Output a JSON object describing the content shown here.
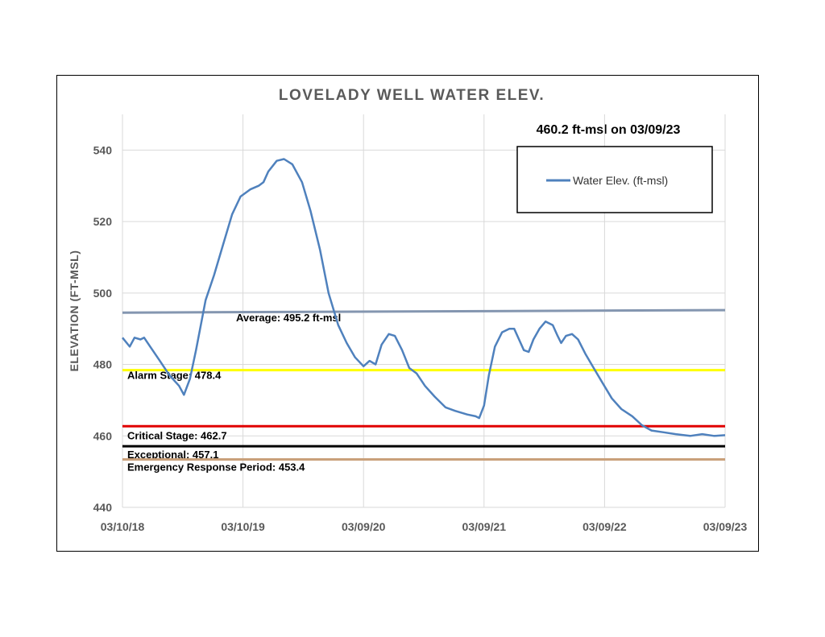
{
  "chart_data": {
    "type": "line",
    "title": "LOVELADY WELL WATER ELEV.",
    "ylabel": "ELEVATION (FT-MSL)",
    "xlabel": "",
    "ylim": [
      440,
      550
    ],
    "yticks": [
      440,
      460,
      480,
      500,
      520,
      540
    ],
    "x_tick_labels": [
      "03/10/18",
      "03/10/19",
      "03/09/20",
      "03/09/21",
      "03/09/22",
      "03/09/23"
    ],
    "xlim": [
      2018.19,
      2023.19
    ],
    "grid": true,
    "annotation": "460.2 ft-msl on 03/09/23",
    "legend": {
      "position": "top-right",
      "entries": [
        "Water Elev. (ft-msl)"
      ]
    },
    "series": [
      {
        "name": "Water Elev. (ft-msl)",
        "color": "#4f81bd",
        "points": [
          [
            2018.19,
            487.5
          ],
          [
            2018.25,
            485.0
          ],
          [
            2018.29,
            487.5
          ],
          [
            2018.34,
            487.0
          ],
          [
            2018.37,
            487.5
          ],
          [
            2018.42,
            485.0
          ],
          [
            2018.5,
            481.0
          ],
          [
            2018.58,
            477.0
          ],
          [
            2018.66,
            474.0
          ],
          [
            2018.7,
            471.5
          ],
          [
            2018.75,
            476.0
          ],
          [
            2018.8,
            484.0
          ],
          [
            2018.88,
            498.0
          ],
          [
            2018.95,
            505.0
          ],
          [
            2019.02,
            513.0
          ],
          [
            2019.1,
            522.0
          ],
          [
            2019.17,
            527.0
          ],
          [
            2019.25,
            529.0
          ],
          [
            2019.32,
            530.0
          ],
          [
            2019.36,
            531.0
          ],
          [
            2019.4,
            534.0
          ],
          [
            2019.47,
            537.0
          ],
          [
            2019.53,
            537.5
          ],
          [
            2019.6,
            536.0
          ],
          [
            2019.68,
            531.0
          ],
          [
            2019.75,
            523.0
          ],
          [
            2019.83,
            512.0
          ],
          [
            2019.9,
            500.0
          ],
          [
            2019.98,
            491.0
          ],
          [
            2020.05,
            486.0
          ],
          [
            2020.12,
            482.0
          ],
          [
            2020.19,
            479.5
          ],
          [
            2020.24,
            481.0
          ],
          [
            2020.29,
            480.0
          ],
          [
            2020.34,
            485.5
          ],
          [
            2020.4,
            488.5
          ],
          [
            2020.45,
            488.0
          ],
          [
            2020.51,
            484.0
          ],
          [
            2020.57,
            479.0
          ],
          [
            2020.63,
            477.5
          ],
          [
            2020.7,
            474.0
          ],
          [
            2020.78,
            471.0
          ],
          [
            2020.87,
            468.0
          ],
          [
            2020.95,
            467.0
          ],
          [
            2021.05,
            466.0
          ],
          [
            2021.12,
            465.5
          ],
          [
            2021.15,
            465.0
          ],
          [
            2021.19,
            468.5
          ],
          [
            2021.23,
            477.0
          ],
          [
            2021.28,
            485.0
          ],
          [
            2021.34,
            489.0
          ],
          [
            2021.4,
            490.0
          ],
          [
            2021.44,
            490.0
          ],
          [
            2021.48,
            487.0
          ],
          [
            2021.52,
            484.0
          ],
          [
            2021.56,
            483.5
          ],
          [
            2021.6,
            487.0
          ],
          [
            2021.65,
            490.0
          ],
          [
            2021.7,
            492.0
          ],
          [
            2021.76,
            491.0
          ],
          [
            2021.8,
            488.0
          ],
          [
            2021.83,
            486.0
          ],
          [
            2021.87,
            488.0
          ],
          [
            2021.92,
            488.5
          ],
          [
            2021.97,
            487.0
          ],
          [
            2022.03,
            483.0
          ],
          [
            2022.1,
            479.0
          ],
          [
            2022.17,
            475.0
          ],
          [
            2022.25,
            470.5
          ],
          [
            2022.33,
            467.5
          ],
          [
            2022.42,
            465.5
          ],
          [
            2022.5,
            463.0
          ],
          [
            2022.58,
            461.5
          ],
          [
            2022.68,
            461.0
          ],
          [
            2022.78,
            460.5
          ],
          [
            2022.9,
            460.0
          ],
          [
            2023.0,
            460.5
          ],
          [
            2023.1,
            460.0
          ],
          [
            2023.19,
            460.2
          ]
        ]
      }
    ],
    "reference_lines": [
      {
        "name": "Average",
        "value": 495.2,
        "label": "Average: 495.2 ft-msl",
        "color": "#8496b0",
        "start_value": 494.5
      },
      {
        "name": "Alarm Stage",
        "value": 478.4,
        "label": "Alarm Stage: 478.4",
        "color": "#ffff00"
      },
      {
        "name": "Critical Stage",
        "value": 462.7,
        "label": "Critical Stage: 462.7",
        "color": "#e00000"
      },
      {
        "name": "Exceptional",
        "value": 457.1,
        "label": "Exceptional: 457.1",
        "color": "#000000"
      },
      {
        "name": "Emergency Response Period",
        "value": 453.4,
        "label": "Emergency Response Period: 453.4",
        "color": "#c9a07a"
      }
    ]
  }
}
